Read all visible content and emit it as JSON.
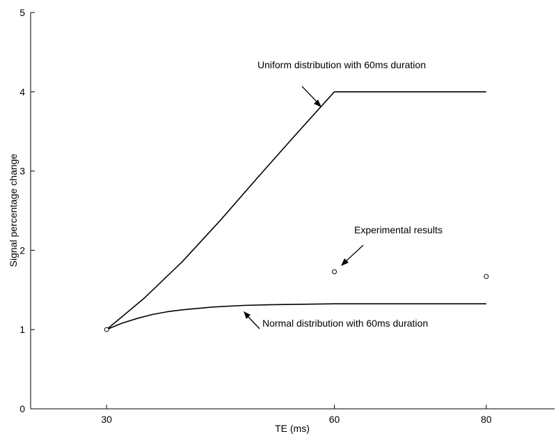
{
  "chart_data": {
    "type": "line",
    "xlabel": "TE (ms)",
    "ylabel": "Signal percentage change",
    "xlim": [
      20,
      89
    ],
    "ylim": [
      0,
      5
    ],
    "xticks": [
      30,
      60,
      80
    ],
    "yticks": [
      0,
      1,
      2,
      3,
      4,
      5
    ],
    "grid": false,
    "series": [
      {
        "label": "Uniform distribution with 60ms duration",
        "x": [
          30,
          35,
          40,
          45,
          50,
          55,
          60,
          80
        ],
        "y": [
          1.0,
          1.4,
          1.86,
          2.38,
          2.93,
          3.47,
          4.0,
          4.0
        ]
      },
      {
        "label": "Normal distribution with 60ms duration",
        "x": [
          30,
          32,
          34,
          36,
          38,
          40,
          44,
          48,
          52,
          56,
          60,
          70,
          80
        ],
        "y": [
          1.0,
          1.08,
          1.14,
          1.19,
          1.225,
          1.25,
          1.285,
          1.305,
          1.315,
          1.32,
          1.325,
          1.325,
          1.325
        ]
      }
    ],
    "points": {
      "label": "Experimental results",
      "x": [
        30,
        60,
        80
      ],
      "y": [
        1.0,
        1.73,
        1.67
      ]
    },
    "annotations": [
      {
        "text": "Uniform distribution with 60ms duration",
        "series": 0
      },
      {
        "text": "Normal distribution with 60ms duration",
        "series": 1
      },
      {
        "text": "Experimental results",
        "series": "points"
      }
    ]
  }
}
